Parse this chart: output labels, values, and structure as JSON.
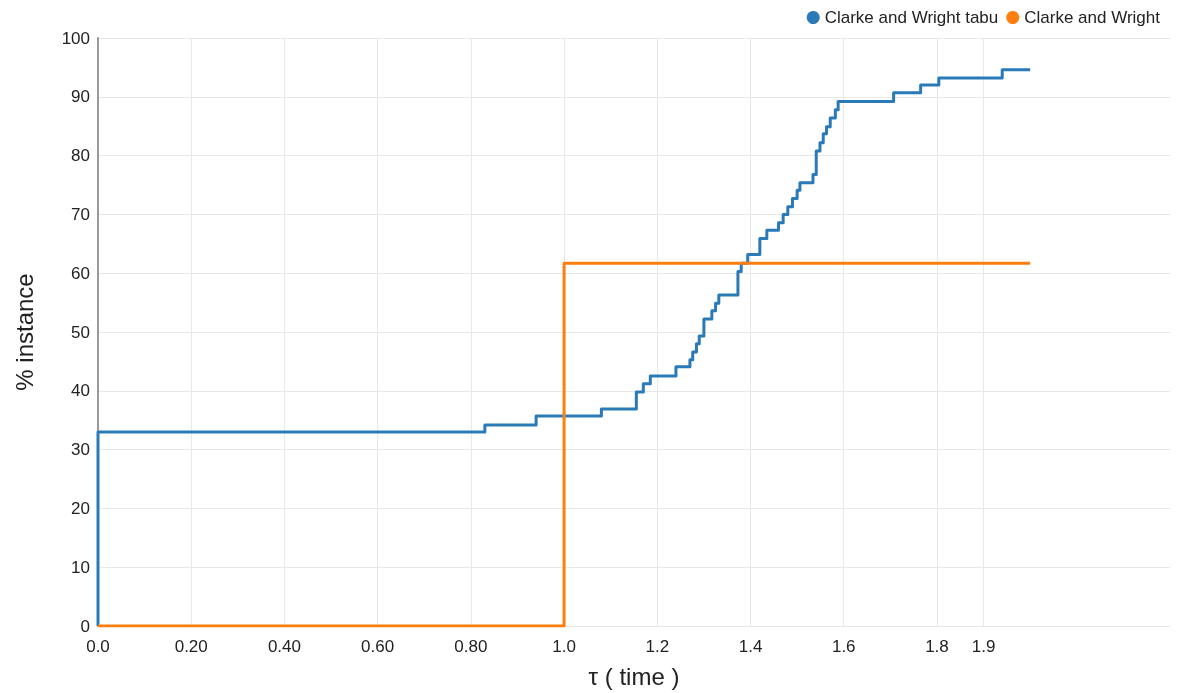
{
  "chart_data": {
    "type": "step",
    "xlabel": "τ ( time )",
    "ylabel": "% instance",
    "xlim": [
      0,
      2.3
    ],
    "xticks": [
      {
        "value": 0,
        "label": "0.0"
      },
      {
        "value": 0.2,
        "label": "0.20"
      },
      {
        "value": 0.4,
        "label": "0.40"
      },
      {
        "value": 0.6,
        "label": "0.60"
      },
      {
        "value": 0.8,
        "label": "0.80"
      },
      {
        "value": 1.0,
        "label": "1.0"
      },
      1.2,
      1.4,
      1.6,
      1.8,
      1.9
    ],
    "ylim": [
      0,
      100
    ],
    "yticks": [
      0,
      10,
      20,
      30,
      40,
      50,
      60,
      70,
      80,
      90,
      100
    ],
    "grid": true,
    "legend": "top right",
    "line_style": "solid",
    "series": [
      {
        "name": "Clarke and Wright tabu",
        "color": "#2a7ab8",
        "x": [
          0,
          0,
          0.83,
          0.94,
          1.08,
          1.155,
          1.17,
          1.185,
          1.24,
          1.27,
          1.276,
          1.284,
          1.29,
          1.3,
          1.317,
          1.325,
          1.332,
          1.373,
          1.38,
          1.394,
          1.42,
          1.435,
          1.46,
          1.47,
          1.48,
          1.49,
          1.5,
          1.506,
          1.534,
          1.541,
          1.549,
          1.556,
          1.563,
          1.571,
          1.582,
          1.588,
          1.707,
          1.765,
          1.804,
          1.94,
          2.0
        ],
        "values": [
          0,
          33,
          34.2,
          35.7,
          36.9,
          39.8,
          41.2,
          42.5,
          44.1,
          45.3,
          46.6,
          48,
          49.3,
          52.2,
          53.6,
          54.9,
          56.3,
          60.3,
          61.7,
          63.2,
          65.9,
          67.3,
          68.6,
          70,
          71.3,
          72.7,
          74.1,
          75.4,
          76.8,
          80.8,
          82.2,
          83.7,
          84.9,
          86.4,
          87.8,
          89.2,
          90.7,
          92,
          93.2,
          94.6,
          94.6
        ]
      },
      {
        "name": "Clarke and Wright",
        "color": "#ff7f0e",
        "x": [
          0,
          1.0,
          2.0
        ],
        "values": [
          0,
          61.7,
          61.7
        ]
      }
    ]
  }
}
